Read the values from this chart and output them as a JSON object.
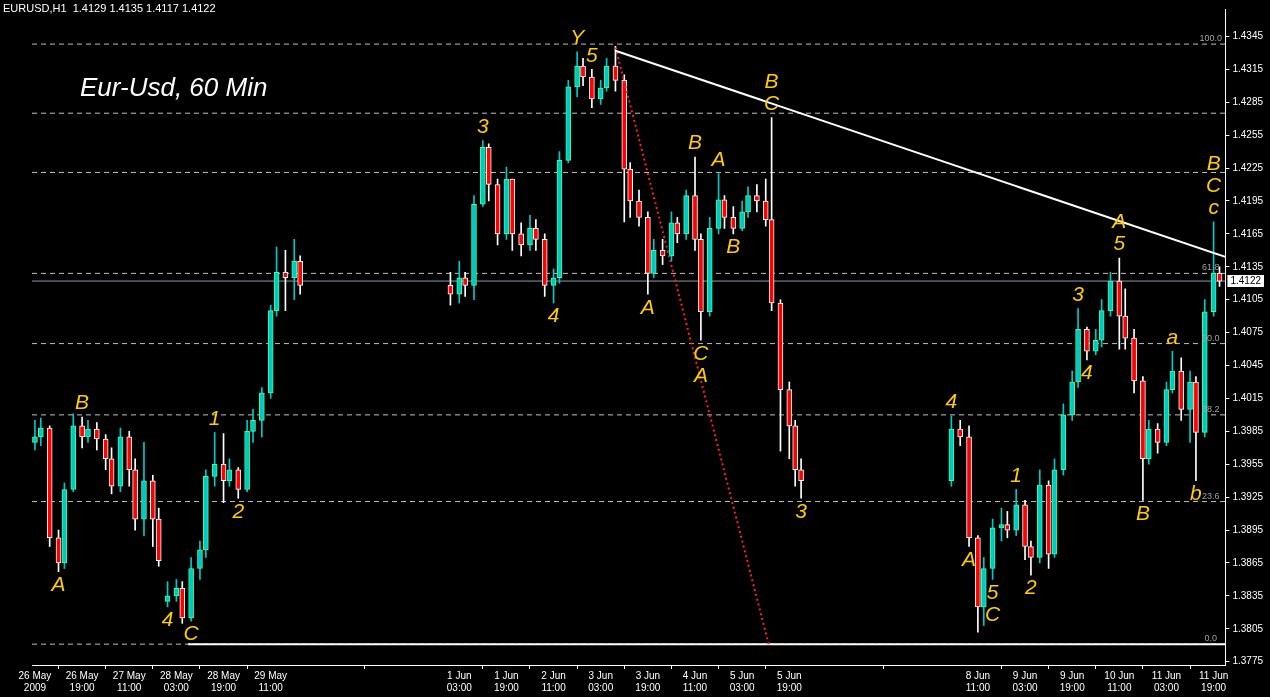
{
  "chart_data": {
    "type": "candlestick",
    "title": "EURUSD,H1  1.4129 1.4135 1.4117 1.4122",
    "subtitle": "Eur-Usd, 60 Min",
    "x": [
      "2009-05-26T03:00",
      "2009-05-26T05:00",
      "2009-05-26T08:00",
      "2009-05-26T11:00",
      "2009-05-26T13:00",
      "2009-05-26T16:00",
      "2009-05-26T19:00",
      "2009-05-26T21:00",
      "2009-05-27T00:00",
      "2009-05-27T03:00",
      "2009-05-27T05:00",
      "2009-05-27T08:00",
      "2009-05-27T11:00",
      "2009-05-27T13:00",
      "2009-05-27T16:00",
      "2009-05-27T19:00",
      "2009-05-27T21:00",
      "2009-05-28T00:00",
      "2009-05-28T03:00",
      "2009-05-28T05:00",
      "2009-05-28T08:00",
      "2009-05-28T11:00",
      "2009-05-28T13:00",
      "2009-05-28T16:00",
      "2009-05-28T19:00",
      "2009-05-28T21:00",
      "2009-05-29T00:00",
      "2009-05-29T03:00",
      "2009-05-29T05:00",
      "2009-05-29T08:00",
      "2009-05-29T11:00",
      "2009-05-29T13:00",
      "2009-05-29T16:00",
      "2009-05-29T19:00",
      "2009-05-29T21:00",
      "2009-06-01T00:00",
      "2009-06-01T03:00",
      "2009-06-01T05:00",
      "2009-06-01T08:00",
      "2009-06-01T11:00",
      "2009-06-01T13:00",
      "2009-06-01T16:00",
      "2009-06-01T19:00",
      "2009-06-01T21:00",
      "2009-06-02T00:00",
      "2009-06-02T03:00",
      "2009-06-02T05:00",
      "2009-06-02T08:00",
      "2009-06-02T11:00",
      "2009-06-02T13:00",
      "2009-06-02T16:00",
      "2009-06-02T19:00",
      "2009-06-02T21:00",
      "2009-06-03T00:00",
      "2009-06-03T03:00",
      "2009-06-03T05:00",
      "2009-06-03T08:00",
      "2009-06-03T11:00",
      "2009-06-03T13:00",
      "2009-06-03T16:00",
      "2009-06-03T19:00",
      "2009-06-03T21:00",
      "2009-06-04T00:00",
      "2009-06-04T03:00",
      "2009-06-04T05:00",
      "2009-06-04T08:00",
      "2009-06-04T11:00",
      "2009-06-04T13:00",
      "2009-06-04T16:00",
      "2009-06-04T19:00",
      "2009-06-04T21:00",
      "2009-06-05T00:00",
      "2009-06-05T03:00",
      "2009-06-05T05:00",
      "2009-06-05T08:00",
      "2009-06-05T11:00",
      "2009-06-05T13:00",
      "2009-06-05T16:00",
      "2009-06-05T19:00",
      "2009-06-05T21:00",
      "2009-06-05T23:00",
      "2009-06-08T02:00",
      "2009-06-08T05:00",
      "2009-06-08T08:00",
      "2009-06-08T11:00",
      "2009-06-08T13:00",
      "2009-06-08T16:00",
      "2009-06-08T19:00",
      "2009-06-08T21:00",
      "2009-06-09T00:00",
      "2009-06-09T03:00",
      "2009-06-09T05:00",
      "2009-06-09T08:00",
      "2009-06-09T11:00",
      "2009-06-09T13:00",
      "2009-06-09T16:00",
      "2009-06-09T19:00",
      "2009-06-09T21:00",
      "2009-06-10T00:00",
      "2009-06-10T03:00",
      "2009-06-10T05:00",
      "2009-06-10T08:00",
      "2009-06-10T11:00",
      "2009-06-10T13:00",
      "2009-06-10T16:00",
      "2009-06-10T19:00",
      "2009-06-10T21:00",
      "2009-06-11T00:00",
      "2009-06-11T03:00",
      "2009-06-11T05:00",
      "2009-06-11T08:00",
      "2009-06-11T11:00",
      "2009-06-11T13:00",
      "2009-06-11T16:00",
      "2009-06-11T19:00",
      "2009-06-11T21:00"
    ],
    "xlim": [
      "2009-05-26T02:00",
      "2009-06-11T23:00"
    ],
    "xticks": [
      {
        "value": "2009-05-26T03:00",
        "label": "26 May 2009"
      },
      {
        "value": "2009-05-26T19:00",
        "label": "26 May 19:00"
      },
      {
        "value": "2009-05-27T11:00",
        "label": "27 May 11:00"
      },
      {
        "value": "2009-05-28T03:00",
        "label": "28 May 03:00"
      },
      {
        "value": "2009-05-28T19:00",
        "label": "28 May 19:00"
      },
      {
        "value": "2009-05-29T11:00",
        "label": "29 May 11:00"
      },
      {
        "value": "2009-06-01T03:00",
        "label": "1 Jun 03:00"
      },
      {
        "value": "2009-06-01T19:00",
        "label": "1 Jun 19:00"
      },
      {
        "value": "2009-06-02T11:00",
        "label": "2 Jun 11:00"
      },
      {
        "value": "2009-06-03T03:00",
        "label": "3 Jun 03:00"
      },
      {
        "value": "2009-06-03T19:00",
        "label": "3 Jun 19:00"
      },
      {
        "value": "2009-06-04T11:00",
        "label": "4 Jun 11:00"
      },
      {
        "value": "2009-06-05T03:00",
        "label": "5 Jun 03:00"
      },
      {
        "value": "2009-06-05T19:00",
        "label": "5 Jun 19:00"
      },
      {
        "value": "2009-06-08T11:00",
        "label": "8 Jun 11:00"
      },
      {
        "value": "2009-06-09T03:00",
        "label": "9 Jun 03:00"
      },
      {
        "value": "2009-06-09T19:00",
        "label": "9 Jun 19:00"
      },
      {
        "value": "2009-06-10T11:00",
        "label": "10 Jun 11:00"
      },
      {
        "value": "2009-06-11T03:00",
        "label": "11 Jun 03:00"
      },
      {
        "value": "2009-06-11T19:00",
        "label": "11 Jun 19:00"
      }
    ],
    "ohlc": [
      [
        1.3975,
        1.3995,
        1.3968,
        1.398
      ],
      [
        1.398,
        1.3997,
        1.3972,
        1.3988
      ],
      [
        1.3988,
        1.399,
        1.388,
        1.3888
      ],
      [
        1.3888,
        1.3895,
        1.3857,
        1.3865
      ],
      [
        1.3865,
        1.3938,
        1.386,
        1.3932
      ],
      [
        1.3932,
        1.4001,
        1.393,
        1.399
      ],
      [
        1.399,
        1.3998,
        1.397,
        1.398
      ],
      [
        1.398,
        1.3995,
        1.3975,
        1.3987
      ],
      [
        1.3987,
        1.3993,
        1.3968,
        1.3978
      ],
      [
        1.3978,
        1.3982,
        1.395,
        1.396
      ],
      [
        1.396,
        1.397,
        1.3928,
        1.3935
      ],
      [
        1.3935,
        1.3988,
        1.393,
        1.398
      ],
      [
        1.398,
        1.3985,
        1.3935,
        1.395
      ],
      [
        1.395,
        1.396,
        1.3895,
        1.3905
      ],
      [
        1.3905,
        1.3975,
        1.389,
        1.394
      ],
      [
        1.394,
        1.3945,
        1.388,
        1.3905
      ],
      [
        1.3905,
        1.3915,
        1.3862,
        1.3867
      ],
      [
        1.383,
        1.3848,
        1.3825,
        1.3835
      ],
      [
        1.3835,
        1.385,
        1.383,
        1.3842
      ],
      [
        1.3842,
        1.3848,
        1.381,
        1.3815
      ],
      [
        1.3815,
        1.387,
        1.3812,
        1.386
      ],
      [
        1.386,
        1.3885,
        1.385,
        1.3877
      ],
      [
        1.3877,
        1.395,
        1.387,
        1.3944
      ],
      [
        1.3944,
        1.3984,
        1.3935,
        1.3955
      ],
      [
        1.3955,
        1.3983,
        1.392,
        1.394
      ],
      [
        1.394,
        1.396,
        1.3935,
        1.395
      ],
      [
        1.395,
        1.3952,
        1.3924,
        1.3932
      ],
      [
        1.3932,
        1.3995,
        1.393,
        1.3985
      ],
      [
        1.3985,
        1.4005,
        1.3975,
        1.3995
      ],
      [
        1.3995,
        1.4025,
        1.398,
        1.402
      ],
      [
        1.402,
        1.41,
        1.4015,
        1.4095
      ],
      [
        1.4095,
        1.4153,
        1.409,
        1.413
      ],
      [
        1.413,
        1.415,
        1.4095,
        1.4125
      ],
      [
        1.4125,
        1.416,
        1.4105,
        1.414
      ],
      [
        1.414,
        1.4145,
        1.411,
        1.4118
      ],
      [
        1.4118,
        1.413,
        1.41,
        1.411
      ],
      [
        1.411,
        1.414,
        1.4102,
        1.4125
      ],
      [
        1.4125,
        1.413,
        1.4108,
        1.4118
      ],
      [
        1.4118,
        1.42,
        1.4105,
        1.4192
      ],
      [
        1.4192,
        1.425,
        1.419,
        1.4244
      ],
      [
        1.4244,
        1.4247,
        1.4195,
        1.421
      ],
      [
        1.421,
        1.4215,
        1.4155,
        1.4165
      ],
      [
        1.4165,
        1.4226,
        1.416,
        1.4215
      ],
      [
        1.4215,
        1.4215,
        1.415,
        1.4165
      ],
      [
        1.4165,
        1.4175,
        1.4145,
        1.4155
      ],
      [
        1.4155,
        1.4182,
        1.415,
        1.417
      ],
      [
        1.417,
        1.4178,
        1.415,
        1.416
      ],
      [
        1.416,
        1.4165,
        1.4108,
        1.4118
      ],
      [
        1.4118,
        1.4133,
        1.4102,
        1.4125
      ],
      [
        1.4125,
        1.424,
        1.412,
        1.4232
      ],
      [
        1.4232,
        1.4305,
        1.423,
        1.4299
      ],
      [
        1.4299,
        1.4331,
        1.429,
        1.4318
      ],
      [
        1.4318,
        1.4325,
        1.43,
        1.4308
      ],
      [
        1.4308,
        1.4315,
        1.428,
        1.4288
      ],
      [
        1.4288,
        1.4305,
        1.4283,
        1.4298
      ],
      [
        1.4298,
        1.4325,
        1.4295,
        1.4318
      ],
      [
        1.4318,
        1.4336,
        1.4295,
        1.4305
      ],
      [
        1.4305,
        1.431,
        1.4176,
        1.4224
      ],
      [
        1.4224,
        1.423,
        1.418,
        1.4195
      ],
      [
        1.4195,
        1.4205,
        1.4172,
        1.418
      ],
      [
        1.418,
        1.4185,
        1.411,
        1.4129
      ],
      [
        1.4129,
        1.416,
        1.4125,
        1.415
      ],
      [
        1.415,
        1.416,
        1.4137,
        1.4145
      ],
      [
        1.4145,
        1.4185,
        1.414,
        1.4175
      ],
      [
        1.4175,
        1.418,
        1.4157,
        1.4165
      ],
      [
        1.4165,
        1.4205,
        1.416,
        1.42
      ],
      [
        1.42,
        1.4235,
        1.415,
        1.416
      ],
      [
        1.416,
        1.4165,
        1.4068,
        1.4094
      ],
      [
        1.4094,
        1.418,
        1.409,
        1.417
      ],
      [
        1.417,
        1.422,
        1.4165,
        1.4196
      ],
      [
        1.4196,
        1.42,
        1.417,
        1.418
      ],
      [
        1.418,
        1.419,
        1.4165,
        1.417
      ],
      [
        1.417,
        1.4195,
        1.4168,
        1.4185
      ],
      [
        1.4185,
        1.4208,
        1.418,
        1.42
      ],
      [
        1.42,
        1.421,
        1.4185,
        1.4195
      ],
      [
        1.4195,
        1.4215,
        1.4172,
        1.4178
      ],
      [
        1.4178,
        1.4271,
        1.4095,
        1.4102
      ],
      [
        1.4102,
        1.4105,
        1.3967,
        1.4023
      ],
      [
        1.4023,
        1.403,
        1.396,
        1.399
      ],
      [
        1.399,
        1.3995,
        1.3935,
        1.395
      ],
      [
        1.395,
        1.396,
        1.3924,
        1.394
      ],
      [
        1.394,
        1.3999,
        1.3935,
        1.3987
      ],
      [
        1.3987,
        1.3995,
        1.3972,
        1.398
      ],
      [
        1.398,
        1.399,
        1.388,
        1.3888
      ],
      [
        1.3888,
        1.389,
        1.3802,
        1.3825
      ],
      [
        1.3825,
        1.387,
        1.3808,
        1.386
      ],
      [
        1.386,
        1.3905,
        1.385,
        1.3897
      ],
      [
        1.3897,
        1.3915,
        1.3885,
        1.39
      ],
      [
        1.39,
        1.3912,
        1.3888,
        1.3895
      ],
      [
        1.3895,
        1.3932,
        1.389,
        1.3918
      ],
      [
        1.3918,
        1.3922,
        1.3868,
        1.388
      ],
      [
        1.388,
        1.3885,
        1.3854,
        1.387
      ],
      [
        1.387,
        1.395,
        1.3865,
        1.3936
      ],
      [
        1.3936,
        1.394,
        1.386,
        1.3873
      ],
      [
        1.3873,
        1.396,
        1.387,
        1.395
      ],
      [
        1.395,
        1.401,
        1.3945,
        1.4
      ],
      [
        1.4,
        1.404,
        1.3995,
        1.403
      ],
      [
        1.403,
        1.4097,
        1.4025,
        1.4078
      ],
      [
        1.4078,
        1.408,
        1.405,
        1.4058
      ],
      [
        1.4058,
        1.4078,
        1.4055,
        1.4068
      ],
      [
        1.4068,
        1.4105,
        1.4062,
        1.4095
      ],
      [
        1.4095,
        1.413,
        1.409,
        1.4122
      ],
      [
        1.4122,
        1.4143,
        1.406,
        1.409
      ],
      [
        1.409,
        1.4115,
        1.406,
        1.407
      ],
      [
        1.407,
        1.4078,
        1.402,
        1.4031
      ],
      [
        1.4031,
        1.4035,
        1.3922,
        1.396
      ],
      [
        1.396,
        1.3995,
        1.3955,
        1.3987
      ],
      [
        1.3987,
        1.3992,
        1.3965,
        1.3975
      ],
      [
        1.3975,
        1.403,
        1.3972,
        1.4023
      ],
      [
        1.4023,
        1.4058,
        1.402,
        1.404
      ],
      [
        1.404,
        1.4052,
        1.3995,
        1.4005
      ],
      [
        1.4005,
        1.404,
        1.3975,
        1.403
      ],
      [
        1.403,
        1.4035,
        1.394,
        1.3984
      ],
      [
        1.3984,
        1.4105,
        1.398,
        1.4094
      ],
      [
        1.4094,
        1.4176,
        1.409,
        1.4129
      ],
      [
        1.4129,
        1.4135,
        1.4117,
        1.4122
      ]
    ],
    "ylim": [
      1.3772,
      1.437
    ],
    "yticks": [
      1.3775,
      1.3805,
      1.3835,
      1.3865,
      1.3895,
      1.3925,
      1.3955,
      1.3985,
      1.4015,
      1.4045,
      1.4075,
      1.4105,
      1.4135,
      1.4165,
      1.4195,
      1.4225,
      1.4255,
      1.4285,
      1.4315,
      1.4345
    ],
    "ref_lines": [
      {
        "axis": "y",
        "value": 1.4338,
        "color": "#c0c0c0",
        "line_style": "dashed"
      },
      {
        "axis": "y",
        "value": 1.4275,
        "color": "#c0c0c0",
        "line_style": "dashed"
      },
      {
        "axis": "y",
        "value": 1.4221,
        "color": "#c0c0c0",
        "line_style": "dashed"
      },
      {
        "axis": "y",
        "value": 1.4129,
        "color": "#c0c0c0",
        "line_style": "dashed"
      },
      {
        "axis": "y",
        "value": 1.4065,
        "color": "#c0c0c0",
        "line_style": "dashed"
      },
      {
        "axis": "y",
        "value": 1.4,
        "color": "#c0c0c0",
        "line_style": "dashed"
      },
      {
        "axis": "y",
        "value": 1.3921,
        "color": "#c0c0c0",
        "line_style": "dashed"
      },
      {
        "axis": "y",
        "value": 1.3791,
        "color": "#c0c0c0",
        "line_style": "dashed"
      },
      {
        "axis": "y",
        "value": 1.4122,
        "label": "1.4122",
        "color": "#8a9aaa",
        "line_style": "solid"
      }
    ],
    "series": [
      {
        "type": "line",
        "color": "#ffffff",
        "line_style": "solid",
        "marker": "none",
        "x": [
          "2009-06-03T08:00",
          "2009-06-11T23:00"
        ],
        "values": [
          1.4332,
          1.4144
        ]
      },
      {
        "type": "line",
        "color": "#ff2020",
        "line_style": "dotted",
        "marker": "none",
        "x": [
          "2009-06-03T08:00",
          "2009-06-05T12:00"
        ],
        "values": [
          1.4335,
          1.3791
        ]
      },
      {
        "type": "line",
        "color": "#ffffff",
        "line_style": "solid",
        "marker": "none",
        "x": [
          "2009-05-28T07:00",
          "2009-06-11T23:00"
        ],
        "values": [
          1.3791,
          1.3791
        ]
      }
    ],
    "annotations": [
      {
        "text": "100.0",
        "x": "2009-06-11T18:00",
        "y": 1.4338
      },
      {
        "text": "61.8",
        "x": "2009-06-11T18:00",
        "y": 1.4129
      },
      {
        "text": "50.0",
        "x": "2009-06-11T18:00",
        "y": 1.4065
      },
      {
        "text": "38.2",
        "x": "2009-06-11T18:00",
        "y": 1.4
      },
      {
        "text": "23.6",
        "x": "2009-06-11T18:00",
        "y": 1.3921
      },
      {
        "text": "0.0",
        "x": "2009-06-11T18:00",
        "y": 1.3791
      },
      {
        "text": "A",
        "x": "2009-05-26T11:00",
        "y": 1.3857
      },
      {
        "text": "B",
        "x": "2009-05-26T19:00",
        "y": 1.3998
      },
      {
        "text": "4",
        "x": "2009-05-28T00:00",
        "y": 1.3825
      },
      {
        "text": "C",
        "x": "2009-05-28T08:00",
        "y": 1.3812
      },
      {
        "text": "1",
        "x": "2009-05-28T16:00",
        "y": 1.3984
      },
      {
        "text": "2",
        "x": "2009-05-29T00:00",
        "y": 1.3924
      },
      {
        "text": "3",
        "x": "2009-06-01T11:00",
        "y": 1.425
      },
      {
        "text": "4",
        "x": "2009-06-02T11:00",
        "y": 1.4102
      },
      {
        "text": "Y",
        "x": "2009-06-02T19:00",
        "y": 1.4331
      },
      {
        "text": "5",
        "x": "2009-06-03T00:00",
        "y": 1.4315
      },
      {
        "text": "A",
        "x": "2009-06-03T19:00",
        "y": 1.411
      },
      {
        "text": "B",
        "x": "2009-06-04T11:00",
        "y": 1.4235
      },
      {
        "text": "C",
        "x": "2009-06-04T13:00",
        "y": 1.4068
      },
      {
        "text": "A",
        "x": "2009-06-04T13:00",
        "y": 1.4068
      },
      {
        "text": "A",
        "x": "2009-06-04T19:00",
        "y": 1.422
      },
      {
        "text": "B",
        "x": "2009-06-05T00:00",
        "y": 1.4165
      },
      {
        "text": "C",
        "x": "2009-06-05T13:00",
        "y": 1.4271
      },
      {
        "text": "B",
        "x": "2009-06-05T13:00",
        "y": 1.4271
      },
      {
        "text": "3",
        "x": "2009-06-05T23:00",
        "y": 1.3924
      },
      {
        "text": "4",
        "x": "2009-06-08T02:00",
        "y": 1.3999
      },
      {
        "text": "A",
        "x": "2009-06-08T08:00",
        "y": 1.388
      },
      {
        "text": "5",
        "x": "2009-06-08T16:00",
        "y": 1.385
      },
      {
        "text": "C",
        "x": "2009-06-08T16:00",
        "y": 1.385
      },
      {
        "text": "1",
        "x": "2009-06-09T00:00",
        "y": 1.3932
      },
      {
        "text": "2",
        "x": "2009-06-09T05:00",
        "y": 1.3854
      },
      {
        "text": "3",
        "x": "2009-06-09T21:00",
        "y": 1.4097
      },
      {
        "text": "4",
        "x": "2009-06-10T00:00",
        "y": 1.405
      },
      {
        "text": "5",
        "x": "2009-06-10T11:00",
        "y": 1.4143
      },
      {
        "text": "A",
        "x": "2009-06-10T11:00",
        "y": 1.4143
      },
      {
        "text": "B",
        "x": "2009-06-10T19:00",
        "y": 1.3922
      },
      {
        "text": "a",
        "x": "2009-06-11T05:00",
        "y": 1.4058
      },
      {
        "text": "b",
        "x": "2009-06-11T13:00",
        "y": 1.394
      },
      {
        "text": "c",
        "x": "2009-06-11T19:00",
        "y": 1.4176
      },
      {
        "text": "C",
        "x": "2009-06-11T19:00",
        "y": 1.4176
      },
      {
        "text": "B",
        "x": "2009-06-11T19:00",
        "y": 1.4176
      }
    ]
  }
}
